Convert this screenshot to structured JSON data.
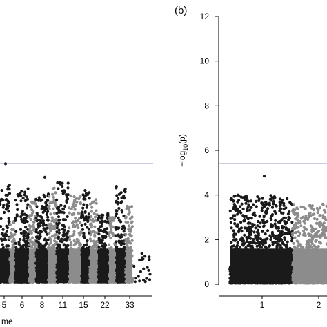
{
  "chart_data": [
    {
      "type": "scatter",
      "panel_label": "",
      "xlabel": "me",
      "ylabel": "",
      "x_ticks": [
        "5",
        "6",
        "8",
        "11",
        "15",
        "22",
        "33"
      ],
      "threshold": 5.4,
      "ylim": [
        0,
        12
      ],
      "colors": {
        "dark": "#1a1a1a",
        "light": "#8c8c8c",
        "threshold": "#2b2b8f"
      },
      "series": [
        {
          "chromosome": "5",
          "color": "dark",
          "max": 4.5,
          "min": 0.1
        },
        {
          "chromosome": "5-6",
          "color": "light",
          "max": 3.0,
          "min": 0.1
        },
        {
          "chromosome": "6",
          "color": "dark",
          "max": 4.3,
          "min": 0.1
        },
        {
          "chromosome": "7",
          "color": "light",
          "max": 3.8,
          "min": 0.1
        },
        {
          "chromosome": "8",
          "color": "dark",
          "max": 4.1,
          "min": 0.1
        },
        {
          "chromosome": "9",
          "color": "light",
          "max": 4.5,
          "min": 0.1
        },
        {
          "chromosome": "10",
          "color": "dark",
          "max": 4.6,
          "min": 0.1
        },
        {
          "chromosome": "11",
          "color": "light",
          "max": 4.0,
          "min": 0.1
        },
        {
          "chromosome": "12",
          "color": "dark",
          "max": 4.3,
          "min": 0.1
        },
        {
          "chromosome": "13",
          "color": "light",
          "max": 3.8,
          "min": 0.1
        },
        {
          "chromosome": "15",
          "color": "dark",
          "max": 3.2,
          "min": 0.1
        },
        {
          "chromosome": "17",
          "color": "light",
          "max": 3.0,
          "min": 0.1
        },
        {
          "chromosome": "20",
          "color": "dark",
          "max": 4.4,
          "min": 0.1
        },
        {
          "chromosome": "22",
          "color": "light",
          "max": 3.5,
          "min": 0.1
        },
        {
          "chromosome": "33",
          "color": "dark",
          "max": 1.2,
          "min": 0.1
        }
      ],
      "highlight_points": [
        {
          "chromosome": "5",
          "y": 5.4
        },
        {
          "chromosome": "9",
          "y": 4.8
        }
      ]
    },
    {
      "type": "scatter",
      "panel_label": "(b)",
      "xlabel": "",
      "ylabel": "−log10(p)",
      "ylabel_main": "−log",
      "ylabel_sub": "10",
      "ylabel_tail": "(p)",
      "y_ticks": [
        0,
        2,
        4,
        6,
        8,
        10,
        12
      ],
      "x_ticks": [
        "1",
        "2"
      ],
      "threshold": 5.4,
      "ylim": [
        0,
        12
      ],
      "series": [
        {
          "chromosome": "1",
          "color": "dark",
          "max": 4.0,
          "min": 0.05
        },
        {
          "chromosome": "2",
          "color": "light",
          "max": 3.6,
          "min": 0.05
        }
      ],
      "highlight_points": [
        {
          "chromosome": "1",
          "y": 4.85
        }
      ]
    }
  ]
}
